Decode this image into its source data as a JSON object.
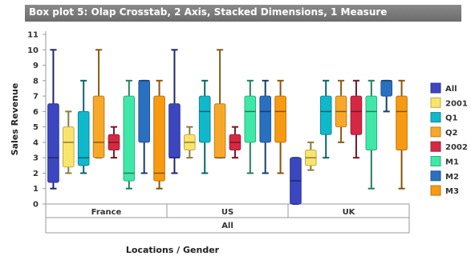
{
  "chart_data": {
    "type": "box",
    "title": "Box plot 5: Olap Crosstab, 2 Axis, Stacked Dimensions, 1 Measure",
    "xlabel": "Locations / Gender",
    "ylabel": "Sales Revenue",
    "ylim": [
      0,
      11
    ],
    "y_ticks": [
      0,
      1,
      2,
      3,
      4,
      5,
      6,
      7,
      8,
      9,
      10,
      11
    ],
    "grid": false,
    "legend_position": "right",
    "categories": [
      "France",
      "US",
      "UK"
    ],
    "outer_category": "All",
    "series": [
      {
        "name": "All",
        "color": "#3c46c0",
        "boxes": [
          [
            1,
            1.4,
            3,
            6.5,
            10
          ],
          [
            2,
            3,
            3,
            6.5,
            10
          ],
          [
            0,
            0,
            1.5,
            3,
            3
          ]
        ]
      },
      {
        "name": "2001",
        "color": "#fbe46b",
        "boxes": [
          [
            2,
            2.4,
            4,
            5,
            6
          ],
          [
            3,
            3.5,
            4,
            4.5,
            5
          ],
          [
            2.2,
            2.5,
            3,
            3.5,
            4
          ]
        ]
      },
      {
        "name": "Q1",
        "color": "#10b8cc",
        "boxes": [
          [
            2,
            2.5,
            3,
            6,
            8
          ],
          [
            2,
            4,
            6,
            7,
            8
          ],
          [
            3,
            4.5,
            6,
            7,
            8
          ]
        ]
      },
      {
        "name": "Q2",
        "color": "#f8a828",
        "boxes": [
          [
            3,
            3,
            4,
            7,
            10
          ],
          [
            3,
            3,
            3,
            6.5,
            10
          ],
          [
            4,
            5,
            6,
            7,
            8
          ]
        ]
      },
      {
        "name": "2002",
        "color": "#d62844",
        "boxes": [
          [
            3,
            3.5,
            4,
            4.5,
            5
          ],
          [
            3,
            3.5,
            4,
            4.5,
            5
          ],
          [
            3,
            4.5,
            6,
            7,
            8
          ]
        ]
      },
      {
        "name": "M1",
        "color": "#3ee8a8",
        "boxes": [
          [
            1,
            1.5,
            2,
            7,
            8
          ],
          [
            2,
            4,
            6,
            7,
            8
          ],
          [
            1,
            3.5,
            6,
            7,
            8
          ]
        ]
      },
      {
        "name": "M2",
        "color": "#2a70c0",
        "boxes": [
          [
            2,
            4,
            8,
            8,
            8
          ],
          [
            2,
            4,
            6,
            7,
            8
          ],
          [
            6,
            7,
            8,
            8,
            8
          ]
        ]
      },
      {
        "name": "M3",
        "color": "#f89a10",
        "boxes": [
          [
            1,
            1.5,
            2,
            7,
            8
          ],
          [
            2,
            4,
            6,
            7,
            8
          ],
          [
            1,
            3.5,
            6,
            7,
            8
          ]
        ]
      }
    ]
  }
}
